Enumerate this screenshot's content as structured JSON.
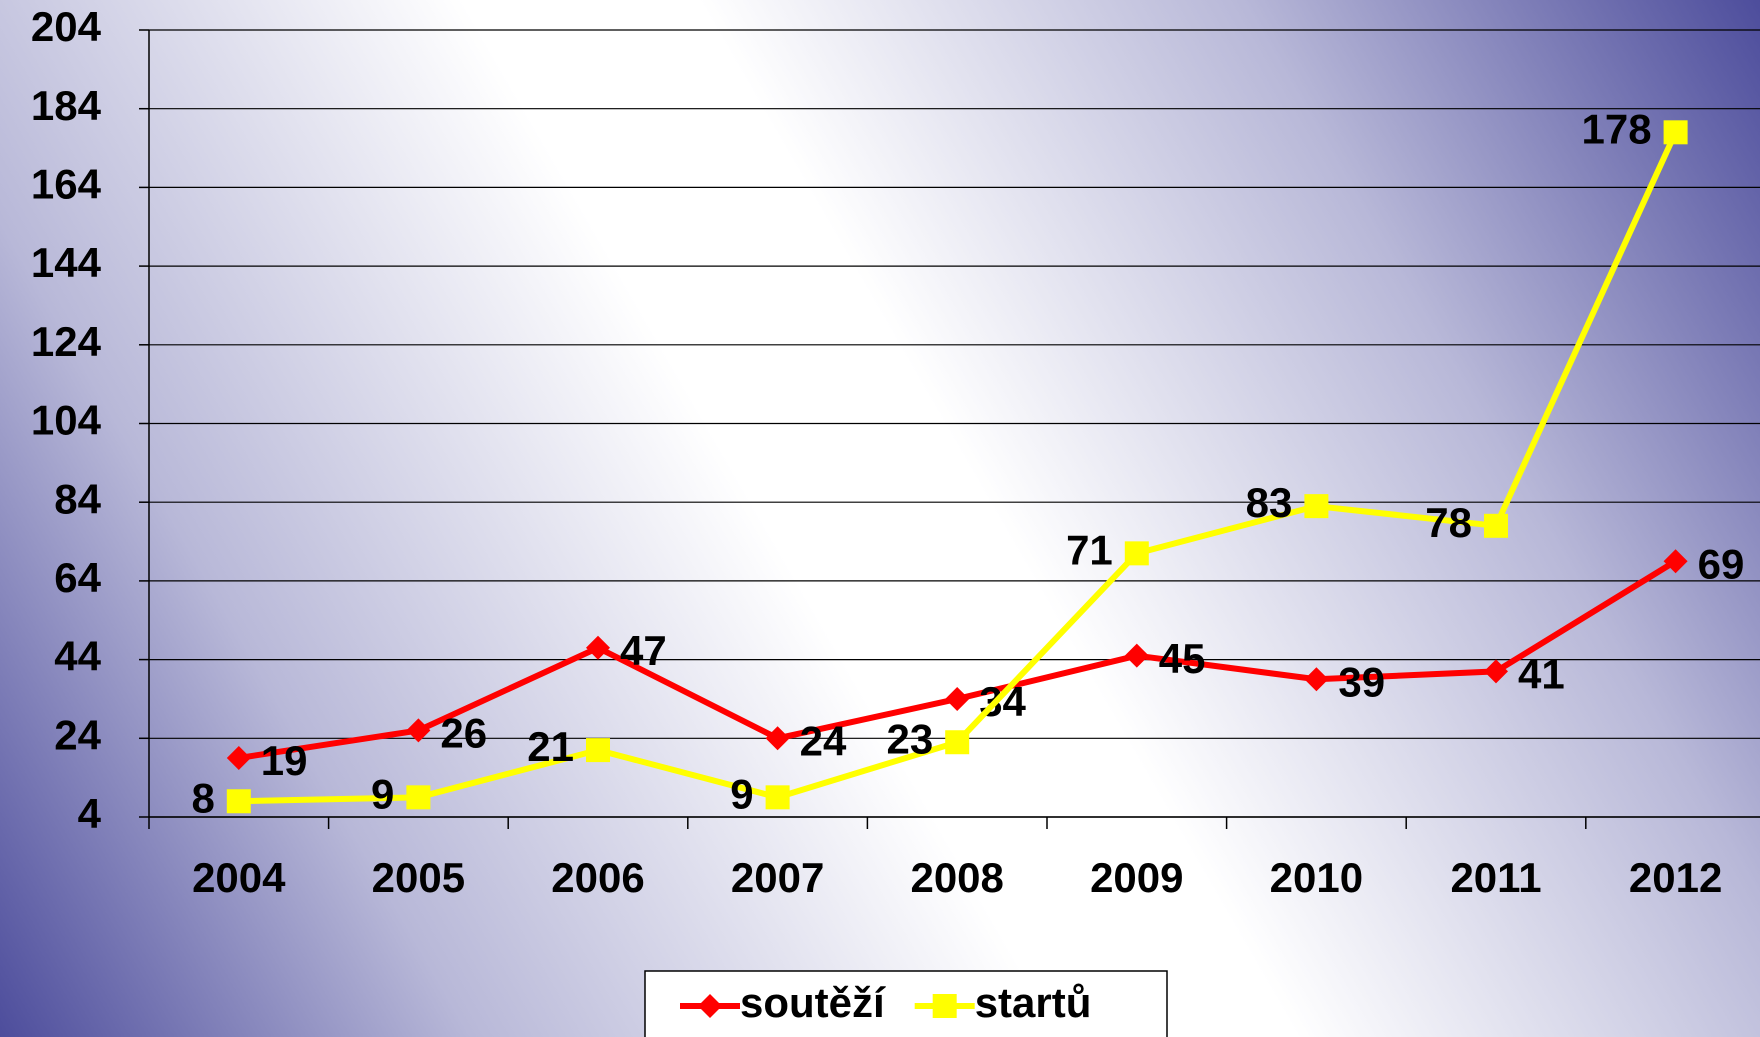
{
  "chart_data": {
    "type": "line",
    "categories": [
      "2004",
      "2005",
      "2006",
      "2007",
      "2008",
      "2009",
      "2010",
      "2011",
      "2012"
    ],
    "series": [
      {
        "name": "soutěží",
        "color": "#ff0000",
        "marker": "diamond",
        "values": [
          19,
          26,
          47,
          24,
          34,
          45,
          39,
          41,
          69
        ]
      },
      {
        "name": "startů",
        "color": "#ffff00",
        "marker": "square",
        "values": [
          8,
          9,
          21,
          9,
          23,
          71,
          83,
          78,
          178
        ]
      }
    ],
    "ylim": [
      4,
      204
    ],
    "yticks": [
      4,
      24,
      44,
      64,
      84,
      104,
      124,
      144,
      164,
      184,
      204
    ],
    "grid": true,
    "legend": "bottom"
  }
}
